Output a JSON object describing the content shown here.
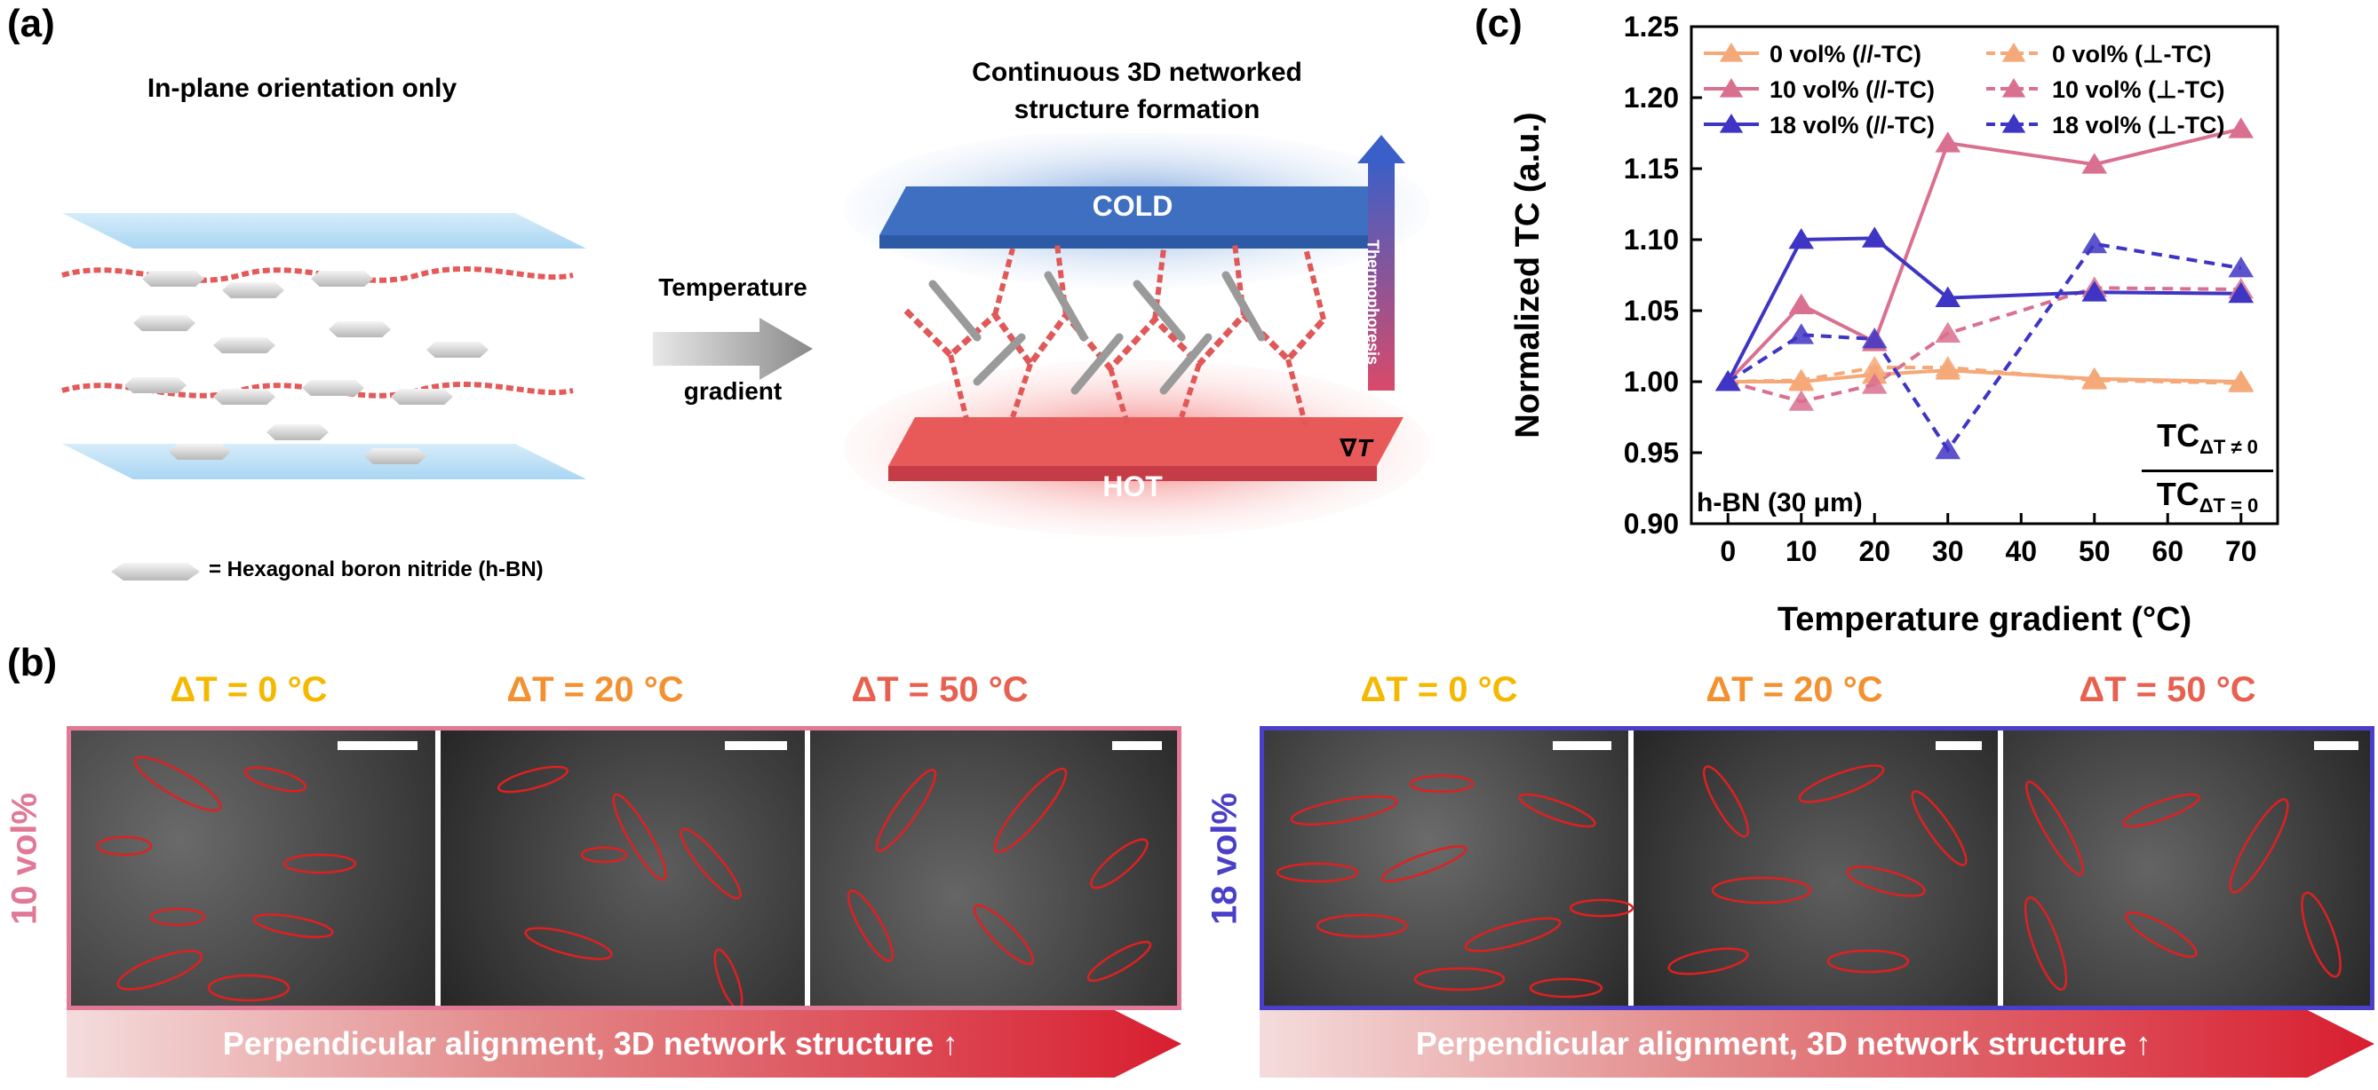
{
  "panel_a": {
    "label": "(a)",
    "left_title": "In-plane orientation only",
    "right_title_line1": "Continuous 3D networked",
    "right_title_line2": "structure formation",
    "arrow_line1": "Temperature",
    "arrow_line2": "gradient",
    "cold": "COLD",
    "hot": "HOT",
    "thermophoresis": "Thermophoresis",
    "grad_symbol": "∇T",
    "legend": "= Hexagonal boron nitride (h-BN)"
  },
  "panel_b": {
    "label": "(b)",
    "left": {
      "vertical_label": "10 vol%",
      "temps": [
        "ΔT = 0 °C",
        "ΔT = 20 °C",
        "ΔT = 50 °C"
      ],
      "arrow_text": "Perpendicular alignment, 3D network structure ↑"
    },
    "right": {
      "vertical_label": "18 vol%",
      "temps": [
        "ΔT = 0 °C",
        "ΔT = 20 °C",
        "ΔT = 50 °C"
      ],
      "arrow_text": "Perpendicular alignment, 3D network structure ↑"
    },
    "colors": {
      "t0": "#f5b800",
      "t20": "#f39030",
      "t50": "#e8604f",
      "frame10": "#e07896",
      "frame18": "#4a3fc8"
    }
  },
  "panel_c": {
    "label": "(c)",
    "annotation": "h-BN (30 μm)",
    "ratio_num": "TC",
    "ratio_num_sub": "ΔT ≠ 0",
    "ratio_den": "TC",
    "ratio_den_sub": "ΔT = 0"
  },
  "chart_data": {
    "type": "line",
    "xlabel": "Temperature gradient (°C)",
    "ylabel": "Normalized TC (a.u.)",
    "xlim": [
      -5,
      75
    ],
    "ylim": [
      0.9,
      1.25
    ],
    "xticks": [
      0,
      10,
      20,
      30,
      40,
      50,
      60,
      70
    ],
    "yticks": [
      0.9,
      0.95,
      1.0,
      1.05,
      1.1,
      1.15,
      1.2,
      1.25
    ],
    "xtick_labels": [
      "0",
      "10",
      "20",
      "30",
      "40",
      "50",
      "60",
      "70"
    ],
    "ytick_labels": [
      "0.90",
      "0.95",
      "1.00",
      "1.05",
      "1.10",
      "1.15",
      "1.20",
      "1.25"
    ],
    "x": [
      0,
      10,
      20,
      30,
      50,
      70
    ],
    "legend_position": "top",
    "series": [
      {
        "name": "0 vol% (//-TC)",
        "values": [
          1.0,
          1.0,
          1.005,
          1.008,
          1.002,
          1.0
        ],
        "color": "#f5a878",
        "dashed": false
      },
      {
        "name": "0 vol% (⊥-TC)",
        "values": [
          1.0,
          1.001,
          1.01,
          1.01,
          1.001,
          0.999
        ],
        "color": "#f5a878",
        "dashed": true
      },
      {
        "name": "10 vol% (//-TC)",
        "values": [
          1.0,
          1.054,
          1.028,
          1.168,
          1.153,
          1.178
        ],
        "color": "#d9708f",
        "dashed": false
      },
      {
        "name": "10 vol% (⊥-TC)",
        "values": [
          1.0,
          0.986,
          0.998,
          1.034,
          1.066,
          1.065
        ],
        "color": "#d9708f",
        "dashed": true
      },
      {
        "name": "18 vol% (//-TC)",
        "values": [
          1.0,
          1.1,
          1.101,
          1.059,
          1.063,
          1.062
        ],
        "color": "#3f35c4",
        "dashed": false
      },
      {
        "name": "18 vol% (⊥-TC)",
        "values": [
          1.0,
          1.033,
          1.03,
          0.952,
          1.097,
          1.08
        ],
        "color": "#3f35c4",
        "dashed": true
      }
    ]
  }
}
